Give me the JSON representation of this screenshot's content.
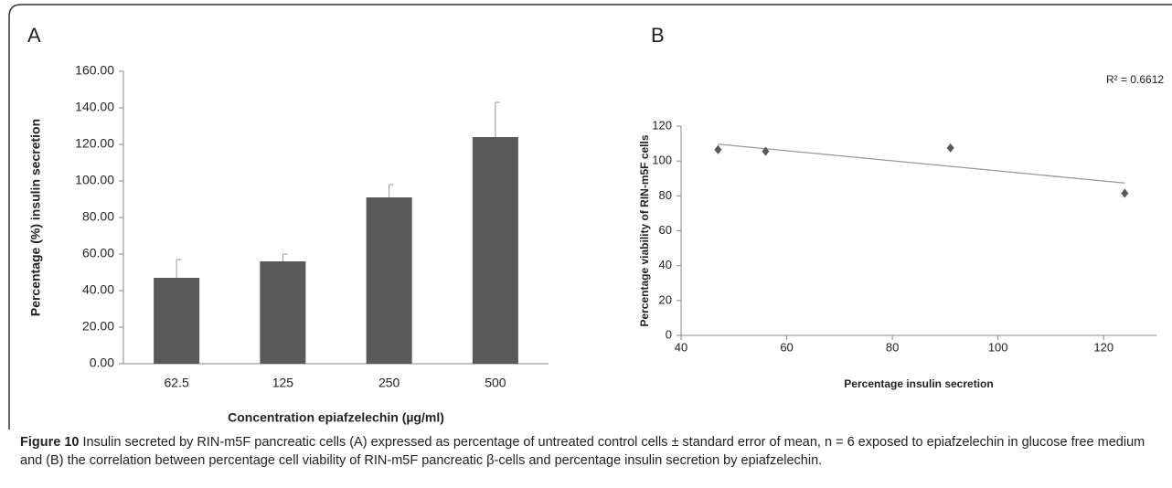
{
  "chart_data": [
    {
      "type": "bar",
      "panel": "A",
      "ylabel": "Percentage (%) insulin secretion",
      "xlabel": "Concentration epiafzelechin  (µg/ml)",
      "categories": [
        "62.5",
        "125",
        "250",
        "500"
      ],
      "values": [
        47,
        56,
        91,
        124
      ],
      "errors": [
        10,
        4,
        7,
        19
      ],
      "color": "#595959",
      "ylim": [
        0,
        160
      ],
      "yticks": [
        {
          "value": 0,
          "label": "0.00"
        },
        {
          "value": 20,
          "label": "20.00"
        },
        {
          "value": 40,
          "label": "40.00"
        },
        {
          "value": 60,
          "label": "60.00"
        },
        {
          "value": 80,
          "label": "80.00"
        },
        {
          "value": 100,
          "label": "100.00"
        },
        {
          "value": 120,
          "label": "120.00"
        },
        {
          "value": 140,
          "label": "140.00"
        },
        {
          "value": 160,
          "label": "160.00"
        }
      ],
      "grid": false
    },
    {
      "type": "scatter",
      "panel": "B",
      "ylabel": "Percentage viability of RIN-m5F cells",
      "xlabel": "Percentage insulin secretion",
      "x": [
        47,
        56,
        91,
        124
      ],
      "values": [
        106.5,
        105.5,
        107.5,
        81.5
      ],
      "color": "#595959",
      "xlim": [
        40,
        130
      ],
      "xticks": [
        40,
        60,
        80,
        100,
        120
      ],
      "ylim": [
        0,
        120
      ],
      "yticks": [
        0,
        20,
        40,
        60,
        80,
        100,
        120
      ],
      "trendline": true,
      "annotation": "R² = 0.6612",
      "grid": false
    }
  ],
  "caption": {
    "label": "Figure 10",
    "text": "Insulin secreted by RIN-m5F pancreatic cells (A) expressed as percentage of untreated control cells ± standard error of mean, n = 6 exposed to epiafzelechin in glucose free medium and (B) the correlation between percentage cell viability of RIN-m5F pancreatic β-cells and percentage insulin secretion by epiafzelechin."
  }
}
